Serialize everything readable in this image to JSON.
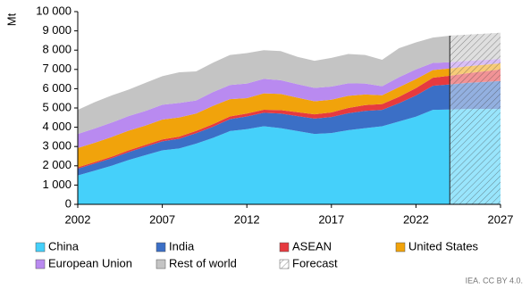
{
  "chart_data": {
    "type": "stacked_area",
    "y_label": "Mt",
    "footer": "IEA. CC BY 4.0.",
    "x": [
      2002,
      2003,
      2004,
      2005,
      2006,
      2007,
      2008,
      2009,
      2010,
      2011,
      2012,
      2013,
      2014,
      2015,
      2016,
      2017,
      2018,
      2019,
      2020,
      2021,
      2022,
      2023,
      2024,
      2025,
      2026,
      2027
    ],
    "xlim": [
      2002,
      2027
    ],
    "xticks": [
      2002,
      2007,
      2012,
      2017,
      2022,
      2027
    ],
    "ylim": [
      0,
      10000
    ],
    "yticks": [
      0,
      {
        "value": 1000,
        "label": "1 000"
      },
      {
        "value": 2000,
        "label": "2 000"
      },
      {
        "value": 3000,
        "label": "3 000"
      },
      {
        "value": 4000,
        "label": "4 000"
      },
      {
        "value": 5000,
        "label": "5 000"
      },
      {
        "value": 6000,
        "label": "6 000"
      },
      {
        "value": 7000,
        "label": "7 000"
      },
      {
        "value": 8000,
        "label": "8 000"
      },
      {
        "value": 9000,
        "label": "9 000"
      },
      {
        "value": 10000,
        "label": "10 000"
      }
    ],
    "series": [
      {
        "name": "China",
        "color": "#45d0fa",
        "values": [
          1500,
          1750,
          2000,
          2300,
          2550,
          2800,
          2900,
          3150,
          3450,
          3800,
          3900,
          4050,
          3950,
          3800,
          3650,
          3700,
          3850,
          3950,
          4050,
          4300,
          4550,
          4900,
          4920,
          4950,
          4950,
          4950
        ]
      },
      {
        "name": "India",
        "color": "#3b6fc6",
        "values": [
          350,
          370,
          390,
          410,
          440,
          470,
          500,
          540,
          580,
          620,
          660,
          700,
          760,
          780,
          800,
          830,
          880,
          900,
          850,
          950,
          1100,
          1250,
          1300,
          1350,
          1400,
          1450
        ]
      },
      {
        "name": "ASEAN",
        "color": "#e63a3f",
        "values": [
          70,
          75,
          80,
          90,
          95,
          100,
          110,
          120,
          130,
          140,
          150,
          160,
          180,
          200,
          220,
          240,
          270,
          300,
          300,
          330,
          380,
          420,
          450,
          500,
          550,
          600
        ]
      },
      {
        "name": "United States",
        "color": "#f1a30b",
        "values": [
          1000,
          1000,
          1020,
          1020,
          1000,
          1030,
          1000,
          900,
          950,
          900,
          800,
          850,
          840,
          750,
          680,
          660,
          630,
          550,
          460,
          500,
          470,
          400,
          380,
          360,
          340,
          320
        ]
      },
      {
        "name": "European Union",
        "color": "#b98af0",
        "values": [
          730,
          740,
          750,
          760,
          760,
          770,
          750,
          680,
          720,
          730,
          760,
          750,
          710,
          700,
          690,
          680,
          650,
          570,
          470,
          520,
          500,
          370,
          320,
          280,
          250,
          220
        ]
      },
      {
        "name": "Rest of world",
        "color": "#c4c4c4",
        "values": [
          1250,
          1365,
          1410,
          1370,
          1455,
          1480,
          1590,
          1510,
          1520,
          1560,
          1580,
          1490,
          1510,
          1420,
          1410,
          1490,
          1520,
          1480,
          1370,
          1500,
          1400,
          1310,
          1380,
          1360,
          1360,
          1360
        ]
      }
    ],
    "forecast": {
      "name": "Forecast",
      "from": 2024
    }
  }
}
